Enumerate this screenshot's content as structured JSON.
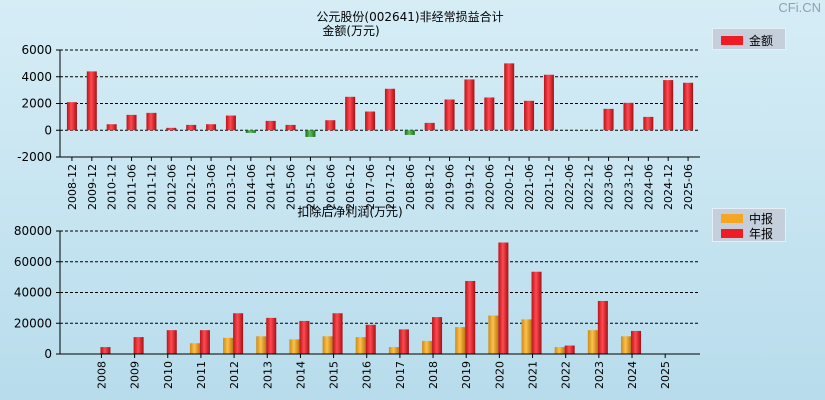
{
  "watermark": "CFi.CN",
  "colors": {
    "red": "#ee1c25",
    "red_dark": "#a81016",
    "green": "#3b9e3b",
    "green_dark": "#1f6b1f",
    "orange": "#f5a623",
    "orange_dark": "#b87810",
    "grid": "#000000"
  },
  "chart_data": [
    {
      "type": "bar",
      "title": "公元股份(002641)非经常损益合计",
      "ylabel": "金额(万元)",
      "legend": [
        "金额"
      ],
      "ylim": [
        -2000,
        6000
      ],
      "yticks": [
        -2000,
        0,
        2000,
        4000,
        6000
      ],
      "categories": [
        "2008-12",
        "2009-12",
        "2010-12",
        "2011-06",
        "2011-12",
        "2012-06",
        "2012-12",
        "2013-06",
        "2013-12",
        "2014-06",
        "2014-12",
        "2015-06",
        "2015-12",
        "2016-06",
        "2016-12",
        "2017-06",
        "2017-12",
        "2018-06",
        "2018-12",
        "2019-06",
        "2019-12",
        "2020-06",
        "2020-12",
        "2021-06",
        "2021-12",
        "2022-06",
        "2022-12",
        "2023-06",
        "2023-12",
        "2024-06",
        "2024-12",
        "2025-06"
      ],
      "values": [
        2100,
        4400,
        450,
        1150,
        1300,
        180,
        400,
        450,
        1100,
        -200,
        700,
        400,
        -500,
        750,
        2500,
        1400,
        3100,
        -350,
        550,
        2300,
        3800,
        2450,
        5000,
        2200,
        4150,
        0,
        0,
        1600,
        2050,
        1000,
        3750,
        3550
      ]
    },
    {
      "type": "bar",
      "title": "扣除后净利润(万元)",
      "legend": [
        "中报",
        "年报"
      ],
      "ylim": [
        0,
        80000
      ],
      "yticks": [
        0,
        20000,
        40000,
        60000,
        80000
      ],
      "categories": [
        "2008",
        "2009",
        "2010",
        "2011",
        "2012",
        "2013",
        "2014",
        "2015",
        "2016",
        "2017",
        "2018",
        "2019",
        "2020",
        "2021",
        "2022",
        "2023",
        "2024",
        "2025"
      ],
      "series": [
        {
          "name": "中报",
          "values": [
            0,
            0,
            0,
            7000,
            10500,
            11500,
            9500,
            11500,
            11000,
            4500,
            8500,
            17500,
            25000,
            22500,
            4500,
            15500,
            11500,
            0
          ]
        },
        {
          "name": "年报",
          "values": [
            4500,
            11000,
            15500,
            15500,
            26500,
            23500,
            21500,
            26500,
            19000,
            16000,
            24000,
            47500,
            72500,
            53500,
            5500,
            34500,
            15000,
            0
          ]
        }
      ]
    }
  ]
}
